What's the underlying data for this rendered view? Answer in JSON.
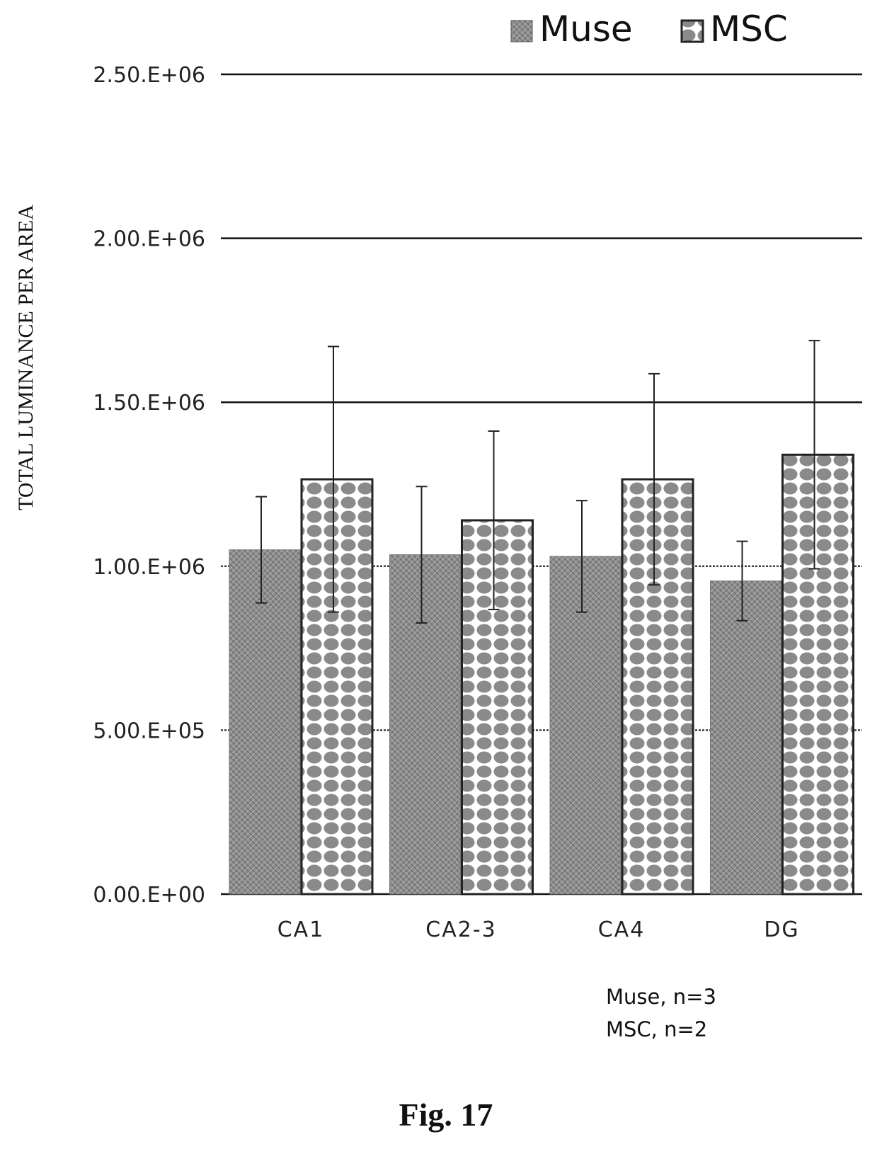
{
  "chart_data": {
    "type": "bar",
    "ylabel": "TOTAL LUMINANCE PER AREA",
    "xlabel": "",
    "ylim": [
      0,
      2500000
    ],
    "y_ticks": [
      {
        "value": 0,
        "label": "0.00.E+00"
      },
      {
        "value": 500000,
        "label": "5.00.E+05"
      },
      {
        "value": 1000000,
        "label": "1.00.E+06"
      },
      {
        "value": 1500000,
        "label": "1.50.E+06"
      },
      {
        "value": 2000000,
        "label": "2.00.E+06"
      },
      {
        "value": 2500000,
        "label": "2.50.E+06"
      }
    ],
    "categories": [
      "CA1",
      "CA2-3",
      "CA4",
      "DG"
    ],
    "series": [
      {
        "name": "Muse",
        "values": [
          1050000,
          1035000,
          1030000,
          955000
        ],
        "errors": [
          162000,
          208000,
          170000,
          121000
        ],
        "color": "#8c8c8c"
      },
      {
        "name": "MSC",
        "values": [
          1265000,
          1140000,
          1265000,
          1340000
        ],
        "errors": [
          405000,
          272000,
          322000,
          348000
        ],
        "color": "#9a9a9a"
      }
    ],
    "legend_position": "top-right",
    "grid": true
  },
  "annotation": {
    "lines": [
      "Muse, n=3",
      "MSC, n=2"
    ]
  },
  "figure_caption": "Fig. 17"
}
